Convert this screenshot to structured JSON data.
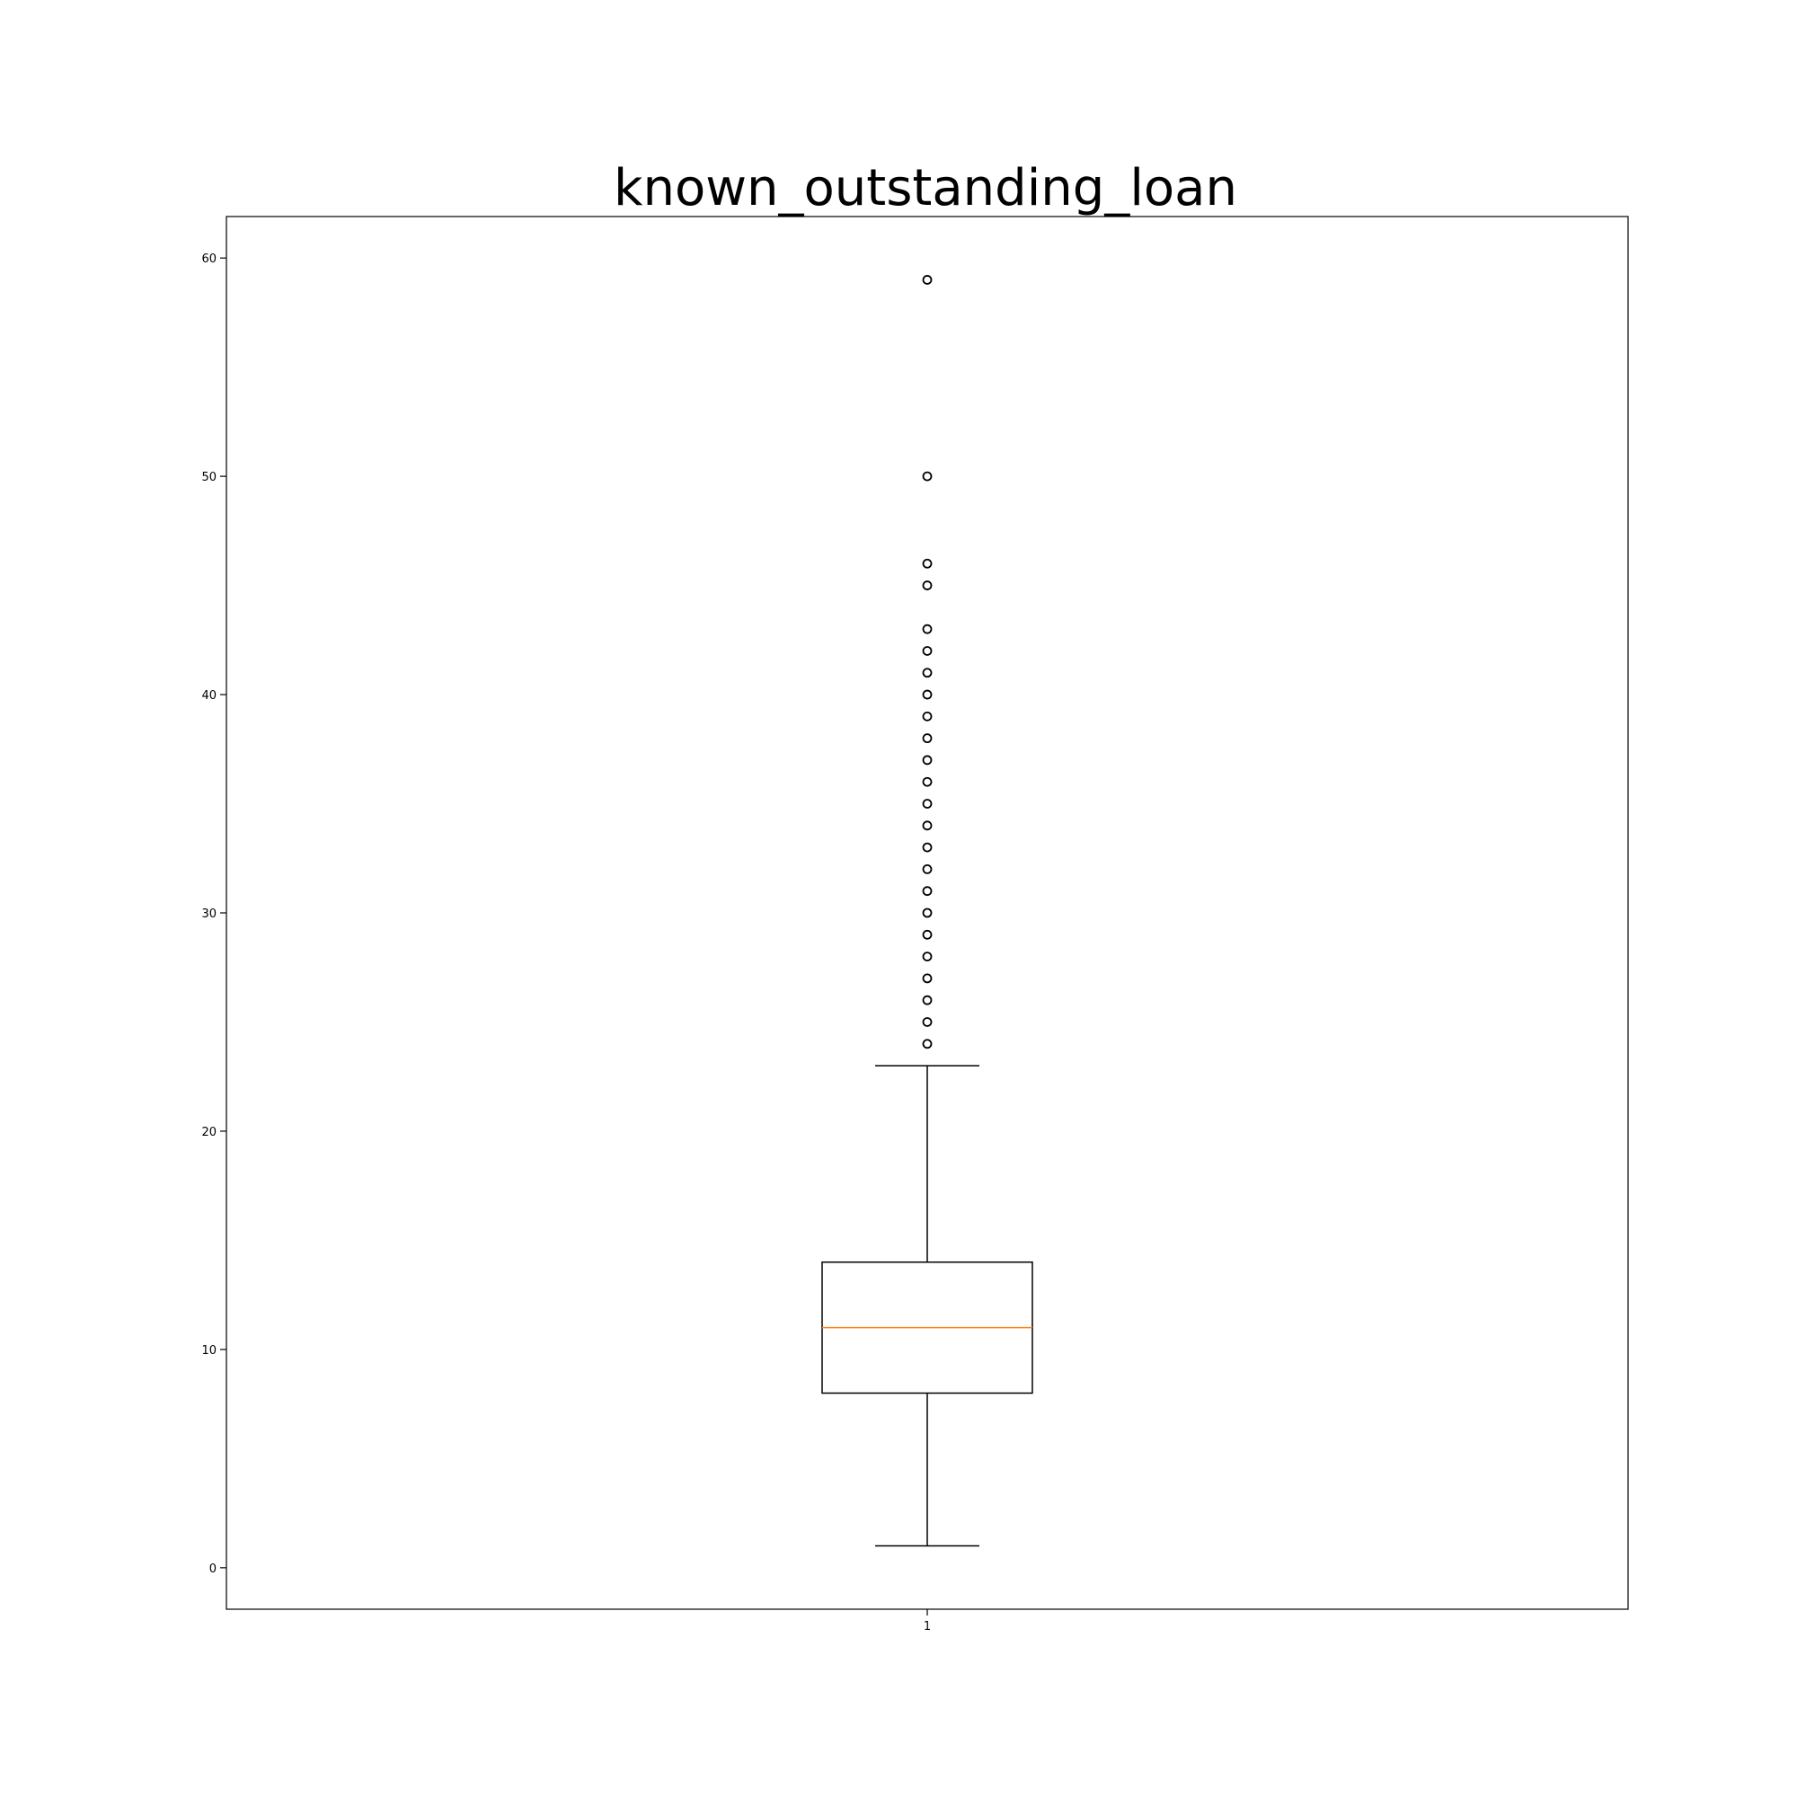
{
  "chart_data": {
    "type": "box",
    "title": "known_outstanding_loan",
    "xlabel": "",
    "ylabel": "",
    "categories": [
      "1"
    ],
    "x_ticks": [
      "1"
    ],
    "y_ticks": [
      0,
      10,
      20,
      30,
      40,
      50,
      60
    ],
    "ylim": [
      -1.9,
      61.9
    ],
    "grid": false,
    "legend": "none",
    "box": {
      "whisker_low": 1,
      "q1": 8,
      "median": 11,
      "q3": 14,
      "whisker_high": 23
    },
    "outliers": [
      24,
      25,
      26,
      27,
      28,
      29,
      30,
      31,
      32,
      33,
      34,
      35,
      36,
      37,
      38,
      39,
      40,
      41,
      42,
      43,
      45,
      46,
      50,
      59
    ],
    "colors": {
      "box": "#000000",
      "median": "#ff7f0e",
      "outlier": "#000000"
    }
  }
}
